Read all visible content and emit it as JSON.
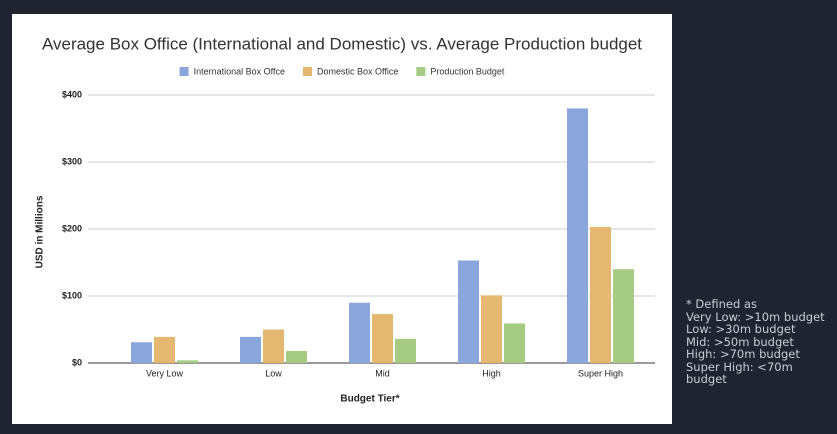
{
  "chart_data": {
    "type": "bar",
    "title": "Average Box Office (International and Domestic) vs. Average Production budget",
    "x_label": "Budget Tier*",
    "y_label": "USD in Millions",
    "categories": [
      "Very Low",
      "Low",
      "Mid",
      "High",
      "Super High"
    ],
    "series": [
      {
        "name": "International Box Offce",
        "color": "#8aa6dd",
        "values": [
          31,
          39,
          90,
          153,
          380
        ]
      },
      {
        "name": "Domestic Box Office",
        "color": "#e4b870",
        "values": [
          39,
          50,
          73,
          101,
          203
        ]
      },
      {
        "name": "Production Budget",
        "color": "#a5cc82",
        "values": [
          4,
          18,
          36,
          59,
          140
        ]
      }
    ],
    "ylim": [
      0,
      400
    ],
    "yticks": [
      {
        "value": 0,
        "label": "$0"
      },
      {
        "value": 100,
        "label": "$100"
      },
      {
        "value": 200,
        "label": "$200"
      },
      {
        "value": 300,
        "label": "$300"
      },
      {
        "value": 400,
        "label": "$400"
      }
    ],
    "grid": true,
    "legend": "top"
  },
  "notes": [
    "* Defined as",
    "Very Low: >10m budget",
    "Low: >30m budget",
    "Mid: >50m budget",
    "High: >70m budget",
    "Super High: <70m budget"
  ]
}
